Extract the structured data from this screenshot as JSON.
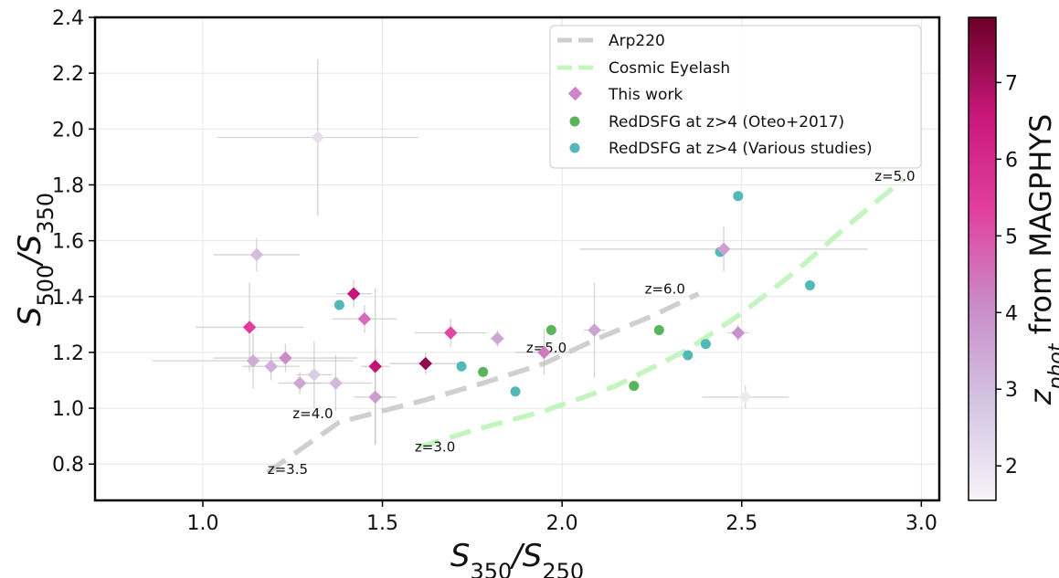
{
  "chart_data": {
    "type": "scatter",
    "xlabel_main": "S",
    "xlabel_sub1": "350",
    "xlabel_sub2": "250",
    "ylabel_main": "S",
    "ylabel_sub1": "500",
    "ylabel_sub2": "350",
    "xlim": [
      0.7,
      3.05
    ],
    "ylim": [
      0.67,
      2.4
    ],
    "x_ticks": [
      1.0,
      1.5,
      2.0,
      2.5,
      3.0
    ],
    "x_tick_labels": [
      "1.0",
      "1.5",
      "2.0",
      "2.5",
      "3.0"
    ],
    "y_ticks": [
      0.8,
      1.0,
      1.2,
      1.4,
      1.6,
      1.8,
      2.0,
      2.2,
      2.4
    ],
    "y_tick_labels": [
      "0.8",
      "1.0",
      "1.2",
      "1.4",
      "1.6",
      "1.8",
      "2.0",
      "2.2",
      "2.4"
    ],
    "grid": true,
    "legend_position": "top-right",
    "colorbar": {
      "label_main": "z",
      "label_sub": "phot",
      "label_rest": " from MAGPHYS",
      "range": [
        1.55,
        7.85
      ],
      "ticks": [
        2,
        3,
        4,
        5,
        6,
        7
      ],
      "tick_labels": [
        "2",
        "3",
        "4",
        "5",
        "6",
        "7"
      ],
      "color_stops": [
        "#f7f3f9",
        "#d4c5e2",
        "#c98dc9",
        "#e23f9f",
        "#c8177a",
        "#6b0026"
      ]
    },
    "tracks": [
      {
        "name": "Arp220",
        "color": "#cfcfcf",
        "x": [
          1.18,
          1.28,
          1.38,
          1.5,
          1.62,
          1.78,
          1.95,
          2.1,
          2.25,
          2.38
        ],
        "y": [
          0.77,
          0.86,
          0.95,
          0.99,
          1.03,
          1.09,
          1.16,
          1.25,
          1.33,
          1.41
        ],
        "labels": [
          {
            "text": "z=3.5",
            "x": 1.18,
            "y": 0.765
          },
          {
            "text": "z=4.0",
            "x": 1.25,
            "y": 0.965
          },
          {
            "text": "z=5.0",
            "x": 1.9,
            "y": 1.2
          },
          {
            "text": "z=6.0",
            "x": 2.23,
            "y": 1.41
          }
        ]
      },
      {
        "name": "Cosmic Eyelash",
        "color": "#c4f5c0",
        "x": [
          1.6,
          1.75,
          1.95,
          2.15,
          2.35,
          2.5,
          2.65,
          2.8,
          2.95
        ],
        "y": [
          0.86,
          0.92,
          0.99,
          1.08,
          1.21,
          1.34,
          1.49,
          1.66,
          1.82
        ],
        "labels": [
          {
            "text": "z=3.0",
            "x": 1.59,
            "y": 0.845
          },
          {
            "text": "z=5.0",
            "x": 2.87,
            "y": 1.815
          }
        ]
      }
    ],
    "series": [
      {
        "name": "This work",
        "marker": "diamond",
        "points": [
          {
            "x": 1.15,
            "y": 1.55,
            "z": 3.0,
            "xerr": 0.12,
            "yerr": 0.06
          },
          {
            "x": 1.32,
            "y": 1.97,
            "z": 2.1,
            "xerr": 0.28,
            "yerr": 0.28
          },
          {
            "x": 1.13,
            "y": 1.29,
            "z": 5.4,
            "xerr": 0.15,
            "yerr": 0.16
          },
          {
            "x": 1.14,
            "y": 1.17,
            "z": 3.4,
            "xerr": 0.28,
            "yerr": 0.1
          },
          {
            "x": 1.19,
            "y": 1.15,
            "z": 3.3,
            "xerr": 0.08,
            "yerr": 0.05
          },
          {
            "x": 1.23,
            "y": 1.18,
            "z": 4.1,
            "xerr": 0.2,
            "yerr": 0.05
          },
          {
            "x": 1.27,
            "y": 1.09,
            "z": 3.5,
            "xerr": 0.06,
            "yerr": 0.04
          },
          {
            "x": 1.31,
            "y": 1.12,
            "z": 2.6,
            "xerr": 0.05,
            "yerr": 0.12
          },
          {
            "x": 1.37,
            "y": 1.09,
            "z": 3.1,
            "xerr": 0.1,
            "yerr": 0.1
          },
          {
            "x": 1.42,
            "y": 1.41,
            "z": 6.6,
            "xerr": 0.05,
            "yerr": 0.05
          },
          {
            "x": 1.45,
            "y": 1.32,
            "z": 4.6,
            "xerr": 0.09,
            "yerr": 0.05
          },
          {
            "x": 1.48,
            "y": 1.15,
            "z": 6.7,
            "xerr": 0.04,
            "yerr": 0.28
          },
          {
            "x": 1.48,
            "y": 1.04,
            "z": 3.7,
            "xerr": 0.06,
            "yerr": 0.17
          },
          {
            "x": 1.62,
            "y": 1.16,
            "z": 7.3,
            "xerr": 0.1,
            "yerr": 0.04
          },
          {
            "x": 1.69,
            "y": 1.27,
            "z": 5.2,
            "xerr": 0.1,
            "yerr": 0.05
          },
          {
            "x": 1.82,
            "y": 1.25,
            "z": 3.5,
            "xerr": 0.02,
            "yerr": 0.03
          },
          {
            "x": 1.95,
            "y": 1.2,
            "z": 4.4,
            "xerr": 0.08,
            "yerr": 0.08
          },
          {
            "x": 2.09,
            "y": 1.28,
            "z": 3.6,
            "xerr": 0.03,
            "yerr": 0.17
          },
          {
            "x": 2.45,
            "y": 1.57,
            "z": 3.7,
            "xerr": 0.4,
            "yerr": 0.08
          },
          {
            "x": 2.49,
            "y": 1.27,
            "z": 4.0,
            "xerr": 0.03,
            "yerr": 0.03
          },
          {
            "x": 2.51,
            "y": 1.04,
            "z": 1.8,
            "xerr": 0.12,
            "yerr": 0.04
          }
        ]
      },
      {
        "name": "RedDSFG at z>4 (Oteo+2017)",
        "color": "#5ab45a",
        "marker": "circle",
        "points": [
          {
            "x": 1.78,
            "y": 1.13
          },
          {
            "x": 1.97,
            "y": 1.28
          },
          {
            "x": 2.2,
            "y": 1.08
          },
          {
            "x": 2.27,
            "y": 1.28
          }
        ]
      },
      {
        "name": "RedDSFG at z>4 (Various studies)",
        "color": "#52b8b8",
        "marker": "circle",
        "points": [
          {
            "x": 1.38,
            "y": 1.37
          },
          {
            "x": 1.72,
            "y": 1.15
          },
          {
            "x": 1.87,
            "y": 1.06
          },
          {
            "x": 2.35,
            "y": 1.19
          },
          {
            "x": 2.4,
            "y": 1.23
          },
          {
            "x": 2.44,
            "y": 1.56
          },
          {
            "x": 2.49,
            "y": 1.76
          },
          {
            "x": 2.69,
            "y": 1.44
          }
        ]
      }
    ]
  }
}
